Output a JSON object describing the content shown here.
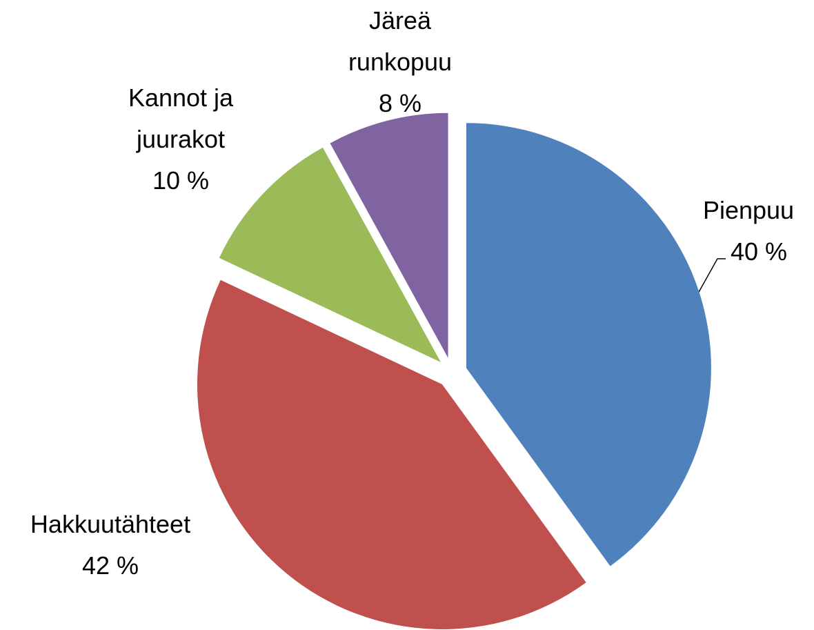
{
  "chart_data": {
    "type": "pie",
    "categories": [
      "Pienpuu",
      "Hakkuutähteet",
      "Kannot ja juurakot",
      "Järeä runkopuu"
    ],
    "values": [
      40,
      42,
      10,
      8
    ],
    "value_labels": [
      "40 %",
      "42 %",
      "10 %",
      "8 %"
    ],
    "colors": [
      "#4f81bd",
      "#c0504d",
      "#9bbb59",
      "#8064a2"
    ]
  }
}
